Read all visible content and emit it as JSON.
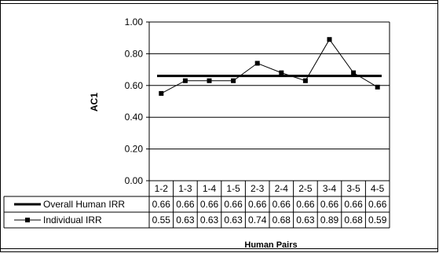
{
  "chart_data": {
    "type": "line",
    "categories": [
      "1-2",
      "1-3",
      "1-4",
      "1-5",
      "2-3",
      "2-4",
      "2-5",
      "3-4",
      "3-5",
      "4-5"
    ],
    "series": [
      {
        "name": "Overall Human IRR",
        "values": [
          0.66,
          0.66,
          0.66,
          0.66,
          0.66,
          0.66,
          0.66,
          0.66,
          0.66,
          0.66
        ],
        "marker": "none",
        "color": "#000000"
      },
      {
        "name": "Individual IRR",
        "values": [
          0.55,
          0.63,
          0.63,
          0.63,
          0.74,
          0.68,
          0.63,
          0.89,
          0.68,
          0.59
        ],
        "marker": "square",
        "color": "#000000"
      }
    ],
    "value_labels": {
      "Overall Human IRR": [
        "0.66",
        "0.66",
        "0.66",
        "0.66",
        "0.66",
        "0.66",
        "0.66",
        "0.66",
        "0.66",
        "0.66"
      ],
      "Individual IRR": [
        "0.55",
        "0.63",
        "0.63",
        "0.63",
        "0.74",
        "0.68",
        "0.63",
        "0.89",
        "0.68",
        "0.59"
      ]
    },
    "yticks": [
      "0.00",
      "0.20",
      "0.40",
      "0.60",
      "0.80",
      "1.00"
    ],
    "ylim": [
      0,
      1
    ],
    "ylabel": "AC1",
    "xlabel": "Human Pairs",
    "grid": true,
    "legend": "data-table"
  }
}
